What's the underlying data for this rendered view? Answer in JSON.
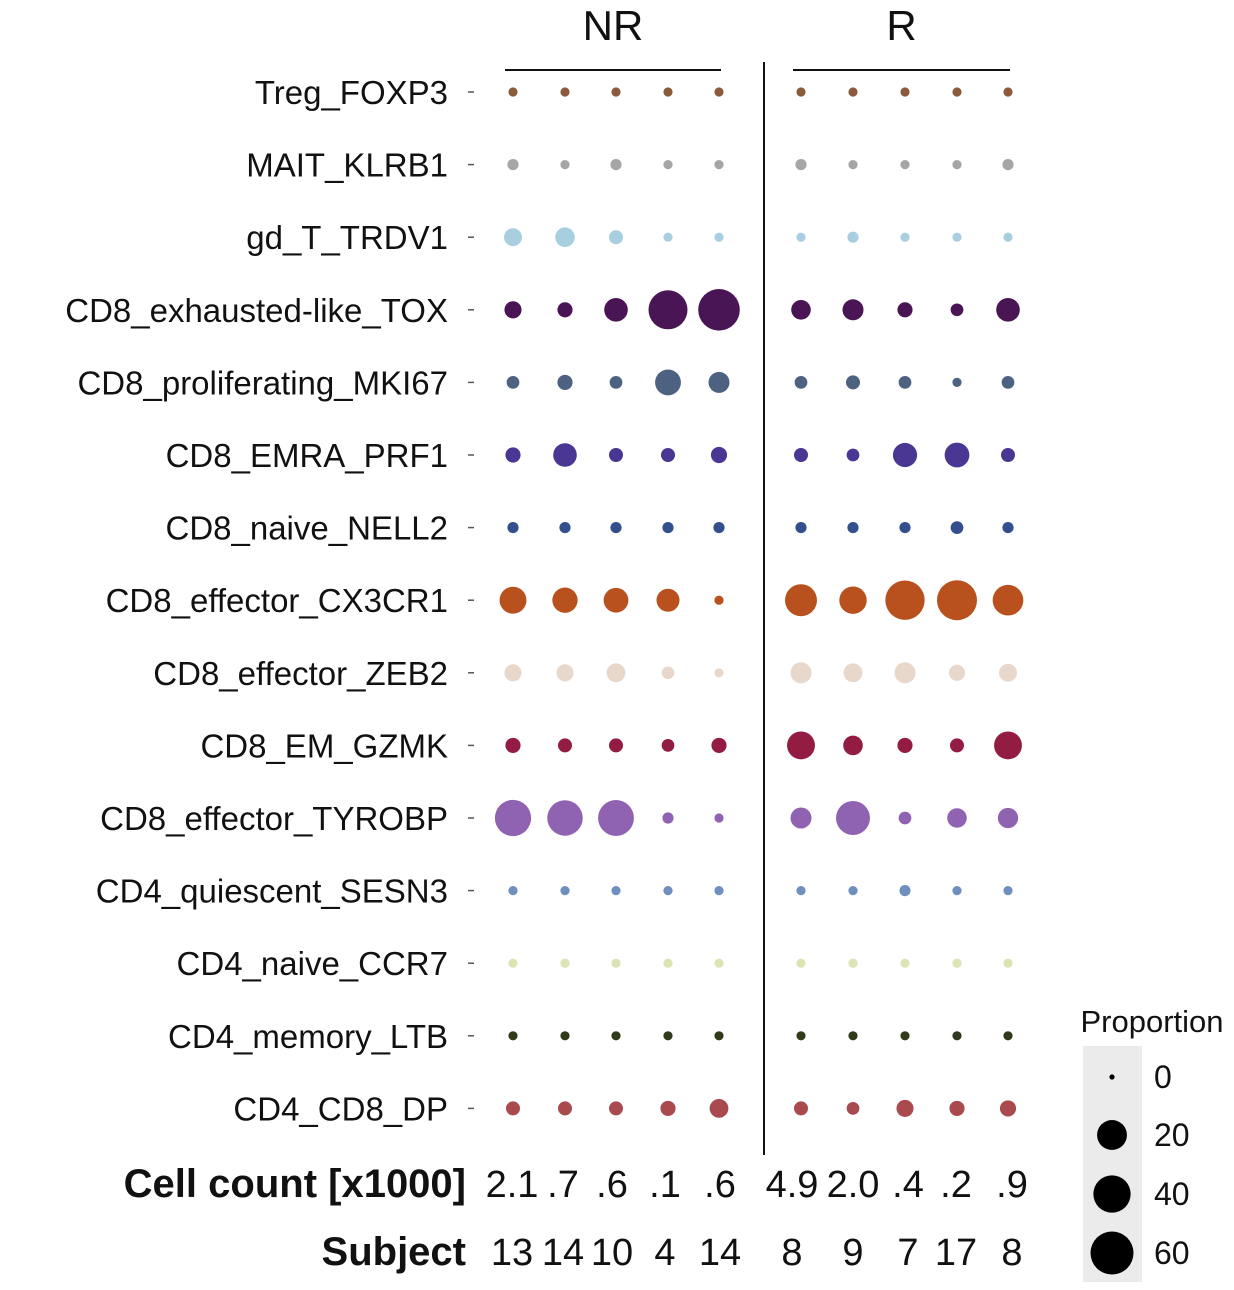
{
  "chart_data": {
    "type": "scatter",
    "groups": [
      {
        "name": "NR",
        "columns": [
          0,
          1,
          2,
          3,
          4
        ]
      },
      {
        "name": "R",
        "columns": [
          5,
          6,
          7,
          8,
          9
        ]
      }
    ],
    "categories": [
      "Treg_FOXP3",
      "MAIT_KLRB1",
      "gd_T_TRDV1",
      "CD8_exhausted-like_TOX",
      "CD8_proliferating_MKI67",
      "CD8_EMRA_PRF1",
      "CD8_naive_NELL2",
      "CD8_effector_CX3CR1",
      "CD8_effector_ZEB2",
      "CD8_EM_GZMK",
      "CD8_effector_TYROBP",
      "CD4_quiescent_SESN3",
      "CD4_naive_CCR7",
      "CD4_memory_LTB",
      "CD4_CD8_DP"
    ],
    "colors": [
      "#8b5a3c",
      "#a5a5a5",
      "#a8cfe0",
      "#4a1554",
      "#4d6180",
      "#4a3793",
      "#334f8e",
      "#b8511e",
      "#e8d8cc",
      "#931c43",
      "#9063b2",
      "#6f8fbf",
      "#dce3b4",
      "#313a1c",
      "#a84a4e"
    ],
    "values": [
      [
        1,
        1,
        1,
        1,
        1,
        1,
        1,
        1,
        1,
        1
      ],
      [
        2,
        1,
        2,
        1,
        1,
        2,
        1,
        1,
        1,
        2
      ],
      [
        8,
        10,
        4,
        1,
        1,
        1,
        2,
        1,
        1,
        1
      ],
      [
        7,
        5,
        16,
        52,
        60,
        10,
        12,
        5,
        3,
        16
      ],
      [
        3,
        5,
        3,
        20,
        12,
        3,
        4,
        3,
        1,
        3
      ],
      [
        5,
        16,
        4,
        4,
        6,
        4,
        3,
        17,
        18,
        4
      ],
      [
        2,
        2,
        2,
        2,
        2,
        2,
        2,
        2,
        3,
        2
      ],
      [
        22,
        19,
        18,
        15,
        1,
        33,
        23,
        53,
        55,
        30
      ],
      [
        7,
        7,
        9,
        3,
        1,
        12,
        9,
        12,
        6,
        8
      ],
      [
        5,
        4,
        4,
        3,
        5,
        24,
        10,
        5,
        4,
        24
      ],
      [
        44,
        42,
        43,
        2,
        1,
        12,
        38,
        3,
        10,
        11
      ],
      [
        1,
        1,
        1,
        1,
        1,
        1,
        1,
        2,
        1,
        1
      ],
      [
        1,
        1,
        1,
        1,
        1,
        1,
        1,
        1,
        1,
        1
      ],
      [
        1,
        1,
        1,
        1,
        1,
        1,
        1,
        1,
        1,
        1
      ],
      [
        4,
        4,
        4,
        5,
        9,
        4,
        3,
        7,
        5,
        6
      ]
    ],
    "rows": [
      {
        "label": "Cell count [x1000]",
        "values": [
          "2.1",
          ".7",
          ".6",
          ".1",
          ".6",
          "4.9",
          "2.0",
          ".4",
          ".2",
          ".9"
        ]
      },
      {
        "label": "Subject",
        "values": [
          "13",
          "14",
          "10",
          "4",
          "14",
          "8",
          "9",
          "7",
          "17",
          "8"
        ]
      }
    ],
    "legend": {
      "title": "Proportion",
      "sizes": [
        0,
        20,
        40,
        60
      ],
      "labels": [
        "0",
        "20",
        "40",
        "60"
      ],
      "placement": "bottom-right"
    }
  }
}
